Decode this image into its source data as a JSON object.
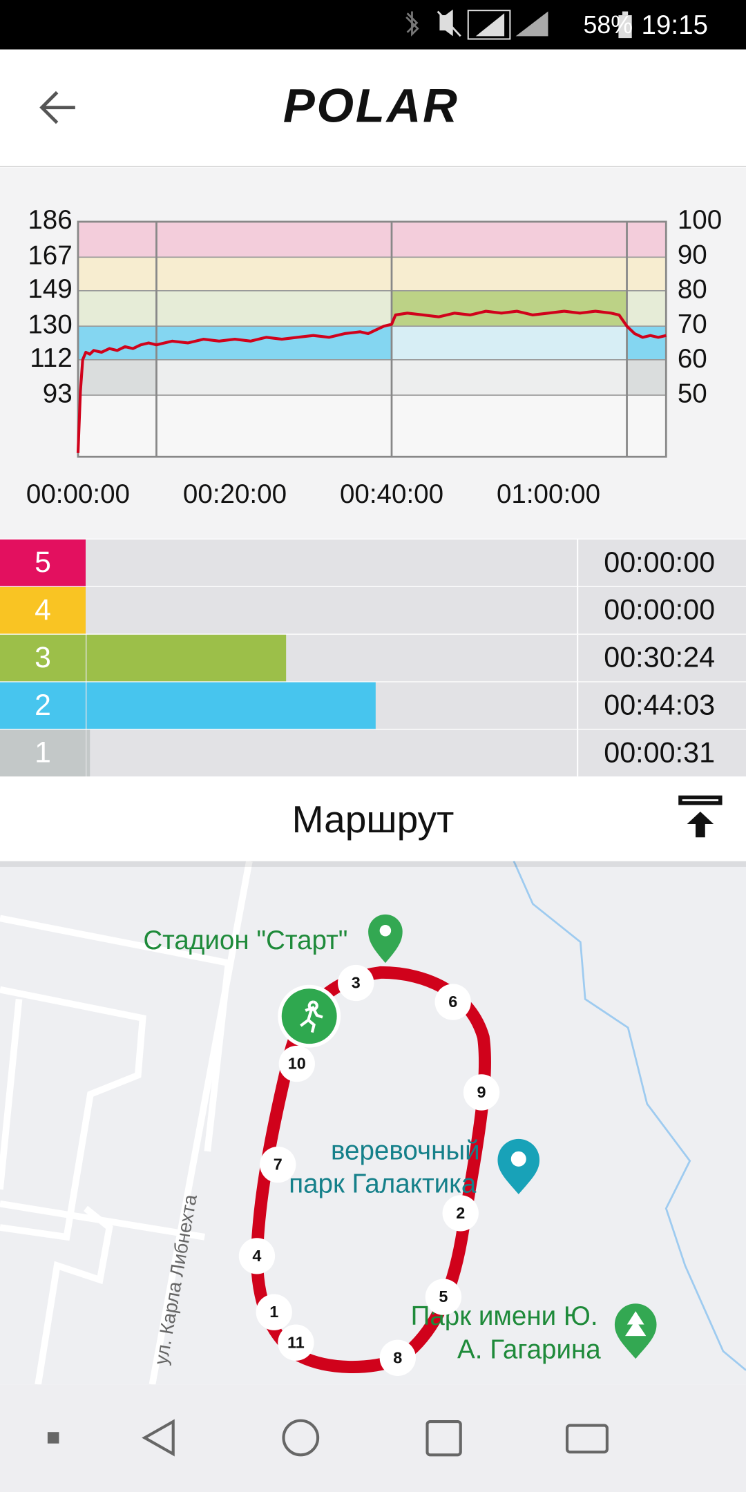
{
  "status_bar": {
    "battery": "58%",
    "time": "19:15"
  },
  "header": {
    "logo": "POLAR"
  },
  "chart_data": {
    "type": "line",
    "x": [
      0,
      0.3,
      0.6,
      1,
      1.5,
      2,
      3,
      4,
      5,
      6,
      7,
      8,
      9,
      10,
      12,
      14,
      16,
      18,
      20,
      22,
      24,
      26,
      28,
      30,
      32,
      34,
      36,
      37,
      38,
      39,
      40,
      40.5,
      42,
      44,
      46,
      48,
      50,
      52,
      54,
      56,
      58,
      60,
      62,
      64,
      66,
      68,
      69,
      70,
      71,
      72,
      73,
      74,
      75
    ],
    "values": [
      62,
      95,
      112,
      116,
      115,
      117,
      116,
      118,
      117,
      119,
      118,
      120,
      121,
      120,
      122,
      121,
      123,
      122,
      123,
      122,
      124,
      123,
      124,
      125,
      124,
      126,
      127,
      126,
      128,
      130,
      131,
      136,
      137,
      136,
      135,
      137,
      136,
      138,
      137,
      138,
      136,
      137,
      138,
      137,
      138,
      137,
      136,
      130,
      126,
      124,
      125,
      124,
      125
    ],
    "color": "#d0021b",
    "xlim": [
      0,
      75
    ],
    "xticks": [
      {
        "value": 0,
        "label": "00:00:00"
      },
      {
        "value": 20,
        "label": "00:20:00"
      },
      {
        "value": 40,
        "label": "00:40:00"
      },
      {
        "value": 60,
        "label": "01:00:00"
      }
    ],
    "ylim": [
      60,
      186
    ],
    "yticks": [
      93,
      112,
      130,
      149,
      167,
      186
    ],
    "y2lim": [
      32.3,
      100
    ],
    "y2ticks": [
      50,
      60,
      70,
      80,
      90,
      100
    ],
    "lap_markers": [
      10,
      40,
      70
    ],
    "lap_zones": [
      [
        1,
        2
      ],
      [
        2
      ],
      [
        3
      ],
      [
        1,
        2
      ]
    ]
  },
  "zones": [
    {
      "zone": 5,
      "color": "#e3105f",
      "duration": "00:00:00"
    },
    {
      "zone": 4,
      "color": "#f9c423",
      "duration": "00:00:00"
    },
    {
      "zone": 3,
      "color": "#9cbf49",
      "duration": "00:30:24"
    },
    {
      "zone": 2,
      "color": "#47c5ee",
      "duration": "00:44:03"
    },
    {
      "zone": 1,
      "color": "#c3c8c8",
      "duration": "00:00:31"
    }
  ],
  "route": {
    "title": "Маршрут",
    "stadium": "Стадион \"Старт\"",
    "rope_park": [
      "веревочный",
      "парк Галактика"
    ],
    "gagarin_park": [
      "Парк имени Ю.",
      "А. Гагарина"
    ],
    "street": "ул. Карла Либнехта",
    "markers": [
      "3",
      "6",
      "10",
      "9",
      "7",
      "2",
      "4",
      "5",
      "1",
      "11",
      "8"
    ]
  }
}
